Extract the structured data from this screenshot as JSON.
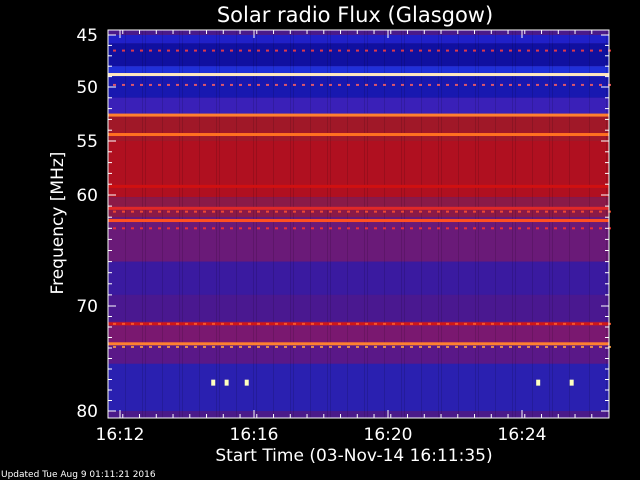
{
  "chart_data": {
    "type": "heatmap",
    "title": "Solar radio Flux (Glasgow)",
    "xlabel": "Start Time (03-Nov-14 16:11:35)",
    "ylabel": "Frequency [MHz]",
    "xlim_minutes": [
      0,
      15
    ],
    "ylim_mhz": [
      45,
      80
    ],
    "x_ticks": [
      {
        "label": "16:12",
        "minute": 0.417
      },
      {
        "label": "16:16",
        "minute": 4.417
      },
      {
        "label": "16:20",
        "minute": 8.417
      },
      {
        "label": "16:24",
        "minute": 12.417
      }
    ],
    "y_ticks": [
      {
        "label": "45",
        "mhz": 45
      },
      {
        "label": "50",
        "mhz": 50
      },
      {
        "label": "55",
        "mhz": 55
      },
      {
        "label": "60",
        "mhz": 60
      },
      {
        "label": "70",
        "mhz": 70
      },
      {
        "label": "80",
        "mhz": 80
      }
    ],
    "background_color": "#4a1a8a",
    "bands": [
      {
        "from_mhz": 45.0,
        "to_mhz": 45.8,
        "color": "#2020c8"
      },
      {
        "from_mhz": 45.8,
        "to_mhz": 48.0,
        "color": "#1010a0"
      },
      {
        "from_mhz": 48.0,
        "to_mhz": 49.0,
        "color": "#2030d8"
      },
      {
        "from_mhz": 49.0,
        "to_mhz": 51.0,
        "color": "#1818b0"
      },
      {
        "from_mhz": 51.0,
        "to_mhz": 52.5,
        "color": "#3a20b8"
      },
      {
        "from_mhz": 52.5,
        "to_mhz": 55.0,
        "color": "#a01828"
      },
      {
        "from_mhz": 55.0,
        "to_mhz": 60.2,
        "color": "#b01020"
      },
      {
        "from_mhz": 60.2,
        "to_mhz": 62.0,
        "color": "#8a1a48"
      },
      {
        "from_mhz": 62.0,
        "to_mhz": 66.0,
        "color": "#6a1a78"
      },
      {
        "from_mhz": 66.0,
        "to_mhz": 69.0,
        "color": "#3a1aa0"
      },
      {
        "from_mhz": 69.0,
        "to_mhz": 71.5,
        "color": "#4a1890"
      },
      {
        "from_mhz": 71.5,
        "to_mhz": 73.5,
        "color": "#7a1870"
      },
      {
        "from_mhz": 73.5,
        "to_mhz": 75.5,
        "color": "#5a1888"
      },
      {
        "from_mhz": 75.5,
        "to_mhz": 80.0,
        "color": "#2a20b0"
      }
    ],
    "emission_lines": [
      {
        "mhz": 48.8,
        "color": "#ffe8c0",
        "from_min": 0,
        "to_min": 15
      },
      {
        "mhz": 52.6,
        "color": "#ff8030",
        "from_min": 0,
        "to_min": 15
      },
      {
        "mhz": 54.4,
        "color": "#ff7020",
        "from_min": 0,
        "to_min": 15
      },
      {
        "mhz": 59.2,
        "color": "#d01010",
        "from_min": 0,
        "to_min": 15
      },
      {
        "mhz": 61.2,
        "color": "#e02828",
        "from_min": 0,
        "to_min": 15
      },
      {
        "mhz": 62.3,
        "color": "#ff5020",
        "from_min": 0,
        "to_min": 15
      },
      {
        "mhz": 71.7,
        "color": "#d01818",
        "from_min": 0,
        "to_min": 15
      },
      {
        "mhz": 73.6,
        "color": "#ff8030",
        "from_min": 0,
        "to_min": 15
      }
    ],
    "bursts": [
      {
        "minute": 3.2,
        "mhz": 77.3,
        "color": "#ffffc0"
      },
      {
        "minute": 3.6,
        "mhz": 77.3,
        "color": "#ffffc0"
      },
      {
        "minute": 4.2,
        "mhz": 77.3,
        "color": "#ffffc0"
      },
      {
        "minute": 12.9,
        "mhz": 77.3,
        "color": "#ffffc0"
      },
      {
        "minute": 13.9,
        "mhz": 77.3,
        "color": "#ffffc0"
      }
    ]
  },
  "footer": {
    "updated_text": "Updated Tue Aug  9 01:11:21 2016"
  }
}
